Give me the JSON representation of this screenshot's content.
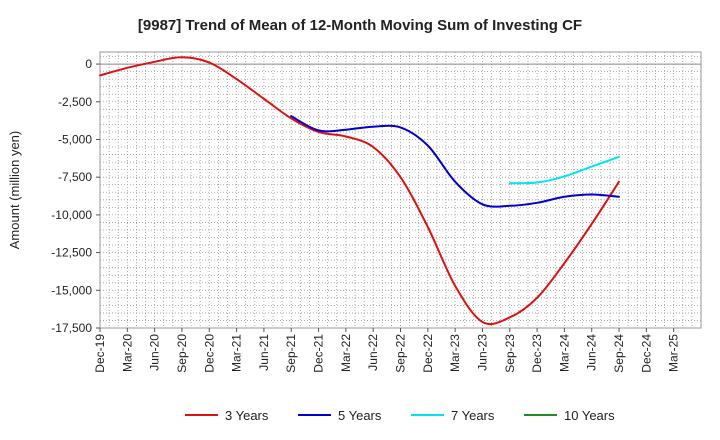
{
  "chart_data": {
    "type": "line",
    "title": "[9987]  Trend of Mean of 12-Month Moving Sum of Investing CF",
    "xlabel": "",
    "ylabel": "Amount (million yen)",
    "ylim": [
      -17500,
      800
    ],
    "y_ticks": [
      0,
      -2500,
      -5000,
      -7500,
      -10000,
      -12500,
      -15000,
      -17500
    ],
    "y_tick_labels": [
      "0",
      "-2,500",
      "-5,000",
      "-7,500",
      "-10,000",
      "-12,500",
      "-15,000",
      "-17,500"
    ],
    "x_tick_labels": [
      "Dec-19",
      "Mar-20",
      "Jun-20",
      "Sep-20",
      "Dec-20",
      "Mar-21",
      "Jun-21",
      "Sep-21",
      "Dec-21",
      "Mar-22",
      "Jun-22",
      "Sep-22",
      "Dec-22",
      "Mar-23",
      "Jun-23",
      "Sep-23",
      "Dec-23",
      "Mar-24",
      "Jun-24",
      "Sep-24",
      "Dec-24",
      "Mar-25"
    ],
    "grid": true,
    "legend_position": "bottom",
    "series": [
      {
        "name": "3 Years",
        "color": "#dd1111",
        "points": [
          [
            0,
            -750
          ],
          [
            1,
            -250
          ],
          [
            2,
            150
          ],
          [
            3,
            450
          ],
          [
            4,
            100
          ],
          [
            5,
            -1000
          ],
          [
            6,
            -2300
          ],
          [
            7,
            -3600
          ],
          [
            8,
            -4500
          ],
          [
            9,
            -4800
          ],
          [
            10,
            -5500
          ],
          [
            11,
            -7500
          ],
          [
            12,
            -10800
          ],
          [
            13,
            -14700
          ],
          [
            14,
            -17100
          ],
          [
            15,
            -16800
          ],
          [
            16,
            -15500
          ],
          [
            17,
            -13200
          ],
          [
            18,
            -10600
          ],
          [
            19,
            -7800
          ]
        ]
      },
      {
        "name": "5 Years",
        "color": "#0000cc",
        "points": [
          [
            7,
            -3450
          ],
          [
            8,
            -4400
          ],
          [
            9,
            -4350
          ],
          [
            10,
            -4150
          ],
          [
            11,
            -4200
          ],
          [
            12,
            -5400
          ],
          [
            13,
            -7800
          ],
          [
            14,
            -9300
          ],
          [
            15,
            -9400
          ],
          [
            16,
            -9200
          ],
          [
            17,
            -8800
          ],
          [
            18,
            -8650
          ],
          [
            19,
            -8800
          ]
        ]
      },
      {
        "name": "7 Years",
        "color": "#00e5ee",
        "points": [
          [
            15,
            -7900
          ],
          [
            16,
            -7850
          ],
          [
            17,
            -7450
          ],
          [
            18,
            -6800
          ],
          [
            19,
            -6150
          ]
        ]
      },
      {
        "name": "10 Years",
        "color": "#228B22",
        "points": []
      }
    ]
  }
}
